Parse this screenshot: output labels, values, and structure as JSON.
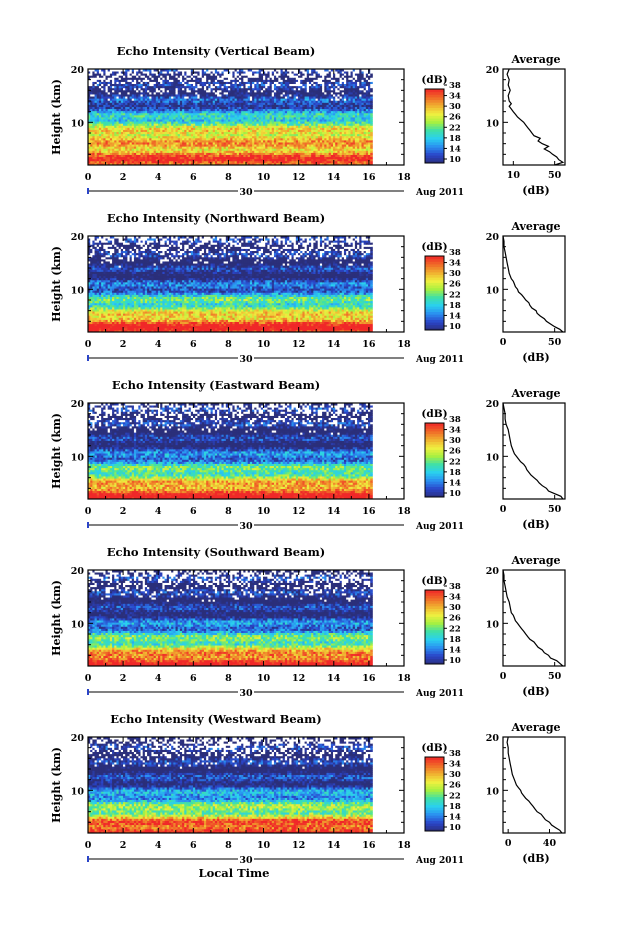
{
  "figure": {
    "xlabel": "Local Time",
    "date_label": "30",
    "month_label": "Aug 2011"
  },
  "chart_data": [
    {
      "type": "heatmap",
      "title": "Echo Intensity (Vertical Beam)",
      "ylabel": "Height (km)",
      "xlim": [
        0,
        18
      ],
      "ylim": [
        2,
        20
      ],
      "x_ticks": [
        "0",
        "2",
        "4",
        "6",
        "8",
        "10",
        "12",
        "14",
        "16",
        "18"
      ],
      "y_ticks": [
        "10",
        "20"
      ],
      "data_x_extent": [
        0,
        16.2
      ],
      "colorbar": {
        "label": "(dB)",
        "ticks": [
          "10",
          "14",
          "18",
          "22",
          "26",
          "30",
          "34",
          "38"
        ],
        "range": [
          10,
          38
        ]
      },
      "intensity_profile_db": [
        [
          0,
          8
        ],
        [
          2,
          37
        ],
        [
          3,
          37
        ],
        [
          4,
          34
        ],
        [
          5,
          32
        ],
        [
          6,
          30
        ],
        [
          7,
          32
        ],
        [
          8,
          30
        ],
        [
          9,
          26
        ],
        [
          10,
          24
        ],
        [
          11,
          20
        ],
        [
          12,
          16
        ],
        [
          13,
          14
        ],
        [
          14,
          12
        ],
        [
          15,
          11
        ],
        [
          16,
          11
        ],
        [
          17,
          10
        ],
        [
          18,
          10
        ],
        [
          19,
          10
        ],
        [
          20,
          10
        ]
      ],
      "average_panel": {
        "title": "Average",
        "xlabel": "(dB)",
        "x_ticks": [
          "10",
          "50"
        ],
        "xlim": [
          0,
          60
        ],
        "y_ticks": [
          "10",
          "20"
        ],
        "ylim": [
          2,
          20
        ],
        "profile": [
          [
            50,
            2
          ],
          [
            58,
            2.5
          ],
          [
            54,
            3
          ],
          [
            52,
            3.5
          ],
          [
            48,
            4
          ],
          [
            45,
            4.5
          ],
          [
            40,
            5
          ],
          [
            44,
            5.5
          ],
          [
            38,
            6
          ],
          [
            34,
            6.5
          ],
          [
            36,
            7
          ],
          [
            30,
            7.5
          ],
          [
            28,
            8
          ],
          [
            26,
            8.5
          ],
          [
            24,
            9
          ],
          [
            22,
            9.5
          ],
          [
            20,
            10
          ],
          [
            17,
            10.5
          ],
          [
            14,
            11
          ],
          [
            12,
            11.5
          ],
          [
            10,
            12
          ],
          [
            8,
            12.5
          ],
          [
            6,
            13
          ],
          [
            8,
            13.5
          ],
          [
            6,
            14
          ],
          [
            5,
            15
          ],
          [
            7,
            16
          ],
          [
            5,
            17
          ],
          [
            6,
            18
          ],
          [
            4,
            19
          ],
          [
            6,
            20
          ]
        ]
      }
    },
    {
      "type": "heatmap",
      "title": "Echo Intensity (Northward Beam)",
      "ylabel": "Height (km)",
      "xlim": [
        0,
        18
      ],
      "ylim": [
        2,
        20
      ],
      "x_ticks": [
        "0",
        "2",
        "4",
        "6",
        "8",
        "10",
        "12",
        "14",
        "16",
        "18"
      ],
      "y_ticks": [
        "10",
        "20"
      ],
      "data_x_extent": [
        0,
        16.2
      ],
      "colorbar": {
        "label": "(dB)",
        "ticks": [
          "10",
          "14",
          "18",
          "22",
          "26",
          "30",
          "34",
          "38"
        ],
        "range": [
          10,
          38
        ]
      },
      "intensity_profile_db": [
        [
          0,
          8
        ],
        [
          2,
          38
        ],
        [
          3,
          38
        ],
        [
          4,
          36
        ],
        [
          5,
          30
        ],
        [
          6,
          26
        ],
        [
          7,
          24
        ],
        [
          8,
          22
        ],
        [
          9,
          18
        ],
        [
          10,
          16
        ],
        [
          11,
          13
        ],
        [
          12,
          11
        ],
        [
          13,
          10
        ],
        [
          14,
          10
        ],
        [
          15,
          10
        ],
        [
          16,
          10
        ],
        [
          17,
          10
        ],
        [
          18,
          10
        ],
        [
          19,
          10
        ],
        [
          20,
          10
        ]
      ],
      "average_panel": {
        "title": "Average",
        "xlabel": "(dB)",
        "x_ticks": [
          "0",
          "50"
        ],
        "xlim": [
          0,
          60
        ],
        "y_ticks": [
          "10",
          "20"
        ],
        "ylim": [
          2,
          20
        ],
        "profile": [
          [
            58,
            2
          ],
          [
            55,
            2.5
          ],
          [
            50,
            3
          ],
          [
            46,
            3.5
          ],
          [
            42,
            4
          ],
          [
            40,
            4.5
          ],
          [
            36,
            5
          ],
          [
            33,
            5.5
          ],
          [
            32,
            6
          ],
          [
            28,
            6.5
          ],
          [
            26,
            7
          ],
          [
            25,
            7.5
          ],
          [
            22,
            8
          ],
          [
            20,
            8.5
          ],
          [
            18,
            9
          ],
          [
            15,
            9.5
          ],
          [
            14,
            10
          ],
          [
            12,
            10.5
          ],
          [
            11,
            11
          ],
          [
            10,
            11.5
          ],
          [
            8,
            12
          ],
          [
            6,
            13
          ],
          [
            5,
            14
          ],
          [
            4,
            15
          ],
          [
            3,
            16
          ],
          [
            2,
            17
          ],
          [
            1,
            18
          ],
          [
            1,
            19
          ],
          [
            0,
            20
          ]
        ]
      }
    },
    {
      "type": "heatmap",
      "title": "Echo Intensity (Eastward Beam)",
      "ylabel": "Height (km)",
      "xlim": [
        0,
        18
      ],
      "ylim": [
        2,
        20
      ],
      "x_ticks": [
        "0",
        "2",
        "4",
        "6",
        "8",
        "10",
        "12",
        "14",
        "16",
        "18"
      ],
      "y_ticks": [
        "10",
        "20"
      ],
      "data_x_extent": [
        0,
        16.2
      ],
      "colorbar": {
        "label": "(dB)",
        "ticks": [
          "10",
          "14",
          "18",
          "22",
          "26",
          "30",
          "34",
          "38"
        ],
        "range": [
          10,
          38
        ]
      },
      "intensity_profile_db": [
        [
          0,
          8
        ],
        [
          2,
          38
        ],
        [
          3,
          38
        ],
        [
          4,
          35
        ],
        [
          5,
          30
        ],
        [
          6,
          27
        ],
        [
          7,
          24
        ],
        [
          8,
          21
        ],
        [
          9,
          18
        ],
        [
          10,
          16
        ],
        [
          11,
          13
        ],
        [
          12,
          11
        ],
        [
          13,
          10
        ],
        [
          14,
          10
        ],
        [
          15,
          10
        ],
        [
          16,
          10
        ],
        [
          17,
          10
        ],
        [
          18,
          10
        ],
        [
          19,
          10
        ],
        [
          20,
          10
        ]
      ],
      "average_panel": {
        "title": "Average",
        "xlabel": "(dB)",
        "x_ticks": [
          "0",
          "50"
        ],
        "xlim": [
          0,
          60
        ],
        "y_ticks": [
          "10",
          "20"
        ],
        "ylim": [
          2,
          20
        ],
        "profile": [
          [
            58,
            2
          ],
          [
            56,
            2.5
          ],
          [
            50,
            3
          ],
          [
            44,
            3.5
          ],
          [
            42,
            4
          ],
          [
            38,
            4.5
          ],
          [
            35,
            5
          ],
          [
            33,
            5.5
          ],
          [
            30,
            6
          ],
          [
            27,
            6.5
          ],
          [
            25,
            7
          ],
          [
            23,
            7.5
          ],
          [
            22,
            8
          ],
          [
            20,
            8.5
          ],
          [
            17,
            9
          ],
          [
            15,
            9.5
          ],
          [
            13,
            10
          ],
          [
            11,
            10.5
          ],
          [
            10,
            11
          ],
          [
            8,
            12
          ],
          [
            7,
            13
          ],
          [
            6,
            14
          ],
          [
            5,
            15
          ],
          [
            3,
            16
          ],
          [
            2,
            17
          ],
          [
            2,
            18
          ],
          [
            1,
            19
          ],
          [
            0,
            20
          ]
        ]
      }
    },
    {
      "type": "heatmap",
      "title": "Echo Intensity (Southward Beam)",
      "ylabel": "Height (km)",
      "xlim": [
        0,
        18
      ],
      "ylim": [
        2,
        20
      ],
      "x_ticks": [
        "0",
        "2",
        "4",
        "6",
        "8",
        "10",
        "12",
        "14",
        "16",
        "18"
      ],
      "y_ticks": [
        "10",
        "20"
      ],
      "data_x_extent": [
        0,
        16.2
      ],
      "colorbar": {
        "label": "(dB)",
        "ticks": [
          "10",
          "14",
          "18",
          "22",
          "26",
          "30",
          "34",
          "38"
        ],
        "range": [
          10,
          38
        ]
      },
      "intensity_profile_db": [
        [
          0,
          8
        ],
        [
          2,
          38
        ],
        [
          3,
          38
        ],
        [
          4,
          35
        ],
        [
          5,
          29
        ],
        [
          6,
          25
        ],
        [
          7,
          23
        ],
        [
          8,
          20
        ],
        [
          9,
          17
        ],
        [
          10,
          15
        ],
        [
          11,
          12
        ],
        [
          12,
          11
        ],
        [
          13,
          10
        ],
        [
          14,
          10
        ],
        [
          15,
          10
        ],
        [
          16,
          10
        ],
        [
          17,
          10
        ],
        [
          18,
          10
        ],
        [
          19,
          10
        ],
        [
          20,
          10
        ]
      ],
      "average_panel": {
        "title": "Average",
        "xlabel": "(dB)",
        "x_ticks": [
          "0",
          "50"
        ],
        "xlim": [
          0,
          60
        ],
        "y_ticks": [
          "10",
          "20"
        ],
        "ylim": [
          2,
          20
        ],
        "profile": [
          [
            58,
            2
          ],
          [
            55,
            2.5
          ],
          [
            52,
            3
          ],
          [
            46,
            3.5
          ],
          [
            44,
            4
          ],
          [
            40,
            4.5
          ],
          [
            38,
            5
          ],
          [
            34,
            5.5
          ],
          [
            32,
            6
          ],
          [
            30,
            6.5
          ],
          [
            26,
            7
          ],
          [
            24,
            7.5
          ],
          [
            22,
            8
          ],
          [
            20,
            8.5
          ],
          [
            18,
            9
          ],
          [
            16,
            9.5
          ],
          [
            14,
            10
          ],
          [
            12,
            10.5
          ],
          [
            11,
            11
          ],
          [
            10,
            11.5
          ],
          [
            8,
            12
          ],
          [
            7,
            13
          ],
          [
            6,
            14
          ],
          [
            4,
            15
          ],
          [
            3,
            16
          ],
          [
            2,
            17
          ],
          [
            1,
            18
          ],
          [
            1,
            19
          ],
          [
            0,
            20
          ]
        ]
      }
    },
    {
      "type": "heatmap",
      "title": "Echo Intensity (Westward Beam)",
      "ylabel": "Height (km)",
      "xlim": [
        0,
        18
      ],
      "ylim": [
        2,
        20
      ],
      "x_ticks": [
        "0",
        "2",
        "4",
        "6",
        "8",
        "10",
        "12",
        "14",
        "16",
        "18"
      ],
      "y_ticks": [
        "10",
        "20"
      ],
      "data_x_extent": [
        0,
        16.2
      ],
      "colorbar": {
        "label": "(dB)",
        "ticks": [
          "10",
          "14",
          "18",
          "22",
          "26",
          "30",
          "34",
          "38"
        ],
        "range": [
          10,
          38
        ]
      },
      "intensity_profile_db": [
        [
          0,
          8
        ],
        [
          2,
          38
        ],
        [
          3,
          38
        ],
        [
          4,
          35
        ],
        [
          5,
          29
        ],
        [
          6,
          26
        ],
        [
          7,
          23
        ],
        [
          8,
          21
        ],
        [
          9,
          18
        ],
        [
          10,
          15
        ],
        [
          11,
          12
        ],
        [
          12,
          11
        ],
        [
          13,
          10
        ],
        [
          14,
          10
        ],
        [
          15,
          10
        ],
        [
          16,
          10
        ],
        [
          17,
          10
        ],
        [
          18,
          10
        ],
        [
          19,
          10
        ],
        [
          20,
          10
        ]
      ],
      "average_panel": {
        "title": "Average",
        "xlabel": "(dB)",
        "x_ticks": [
          "0",
          "40"
        ],
        "xlim": [
          -5,
          55
        ],
        "y_ticks": [
          "10",
          "20"
        ],
        "ylim": [
          2,
          20
        ],
        "profile": [
          [
            52,
            2
          ],
          [
            50,
            2.5
          ],
          [
            46,
            3
          ],
          [
            42,
            3.5
          ],
          [
            40,
            4
          ],
          [
            36,
            4.5
          ],
          [
            34,
            5
          ],
          [
            32,
            5.5
          ],
          [
            28,
            6
          ],
          [
            26,
            6.5
          ],
          [
            24,
            7
          ],
          [
            22,
            7.5
          ],
          [
            20,
            8
          ],
          [
            17,
            8.5
          ],
          [
            15,
            9
          ],
          [
            13,
            9.5
          ],
          [
            12,
            10
          ],
          [
            10,
            10.5
          ],
          [
            8,
            11
          ],
          [
            7,
            11.5
          ],
          [
            6,
            12
          ],
          [
            4,
            13
          ],
          [
            3,
            14
          ],
          [
            2,
            15
          ],
          [
            1,
            16
          ],
          [
            0,
            17
          ],
          [
            0,
            18
          ],
          [
            -1,
            19
          ],
          [
            0,
            20
          ]
        ]
      }
    }
  ],
  "colors": {
    "colorbar_stops": [
      "#2b2f7a",
      "#2a44c8",
      "#2a8ef0",
      "#2ad0f0",
      "#3fe0a8",
      "#a8f040",
      "#f0f040",
      "#f0b030",
      "#f06a28",
      "#f02828"
    ],
    "axis": "#000000",
    "missing": "#ffffff"
  }
}
